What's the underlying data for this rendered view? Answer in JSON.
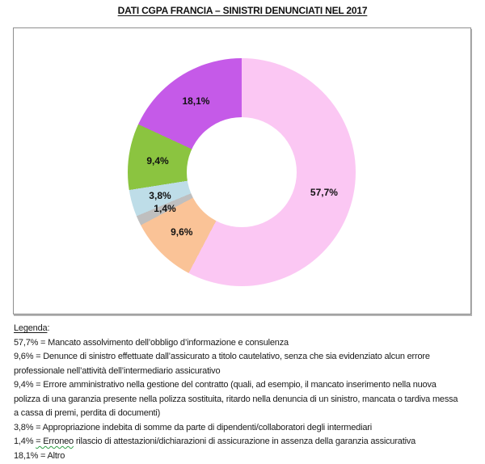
{
  "title": "DATI CGPA FRANCIA – SINISTRI DENUNCIATI NEL 2017",
  "chart_data": {
    "type": "pie",
    "subtype": "donut",
    "start_angle_deg": 0,
    "direction": "clockwise",
    "hole_ratio": 0.48,
    "data_labels": "percent-inside-ring",
    "legend_position": "below-as-text",
    "slices": [
      {
        "pct_label": "57,7%",
        "value": 57.7,
        "color": "#FBC7F3",
        "label": "Mancato assolvimento dell’obbligo d’informazione e consulenza"
      },
      {
        "pct_label": "9,6%",
        "value": 9.6,
        "color": "#FAC397",
        "label": "Denunce di sinistro effettuate dall’assicurato a titolo cautelativo, senza che sia evidenziato alcun errore professionale nell’attività dell’intermediario assicurativo"
      },
      {
        "pct_label": "1,4%",
        "value": 1.4,
        "color": "#BFBFBF",
        "label": "Erroneo rilascio di attestazioni/dichiarazioni di assicurazione in assenza della garanzia assicurativa"
      },
      {
        "pct_label": "3,8%",
        "value": 3.8,
        "color": "#BEDDE8",
        "label": "Appropriazione indebita di somme da parte di dipendenti/collaboratori degli intermediari"
      },
      {
        "pct_label": "9,4%",
        "value": 9.4,
        "color": "#8BC440",
        "label": "Errore amministrativo nella gestione del contratto (quali, ad esempio, il mancato inserimento nella nuova polizza di una garanzia presente nella polizza sostituita, ritardo nella denuncia di un sinistro, mancata o tardiva messa a cassa di premi, perdita di documenti)"
      },
      {
        "pct_label": "18,1%",
        "value": 18.1,
        "color": "#C55AE8",
        "label": "Altro"
      }
    ]
  },
  "legend": {
    "heading_text": "Legenda",
    "heading_colon": ":",
    "lines": [
      {
        "text": "57,7% = Mancato assolvimento dell’obbligo d’informazione e consulenza"
      },
      {
        "text": "9,6% = Denunce di sinistro effettuate dall’assicurato a titolo cautelativo, senza che sia evidenziato alcun errore"
      },
      {
        "text": "professionale nell’attività dell’intermediario assicurativo"
      },
      {
        "text": "9,4% = Errore amministrativo nella gestione del contratto (quali, ad esempio, il mancato inserimento nella nuova"
      },
      {
        "text": "polizza di una garanzia presente nella polizza sostituita, ritardo nella denuncia di un sinistro, mancata o tardiva messa"
      },
      {
        "text": "a cassa di premi, perdita di documenti)"
      },
      {
        "text": "3,8% = Appropriazione indebita di somme da parte di dipendenti/collaboratori degli intermediari"
      },
      {
        "pre": "1,4% ",
        "wavy": "= Erroneo",
        "post": " rilascio di attestazioni/dichiarazioni di assicurazione in assenza della garanzia assicurativa"
      },
      {
        "text": "18,1% = Altro"
      }
    ]
  }
}
